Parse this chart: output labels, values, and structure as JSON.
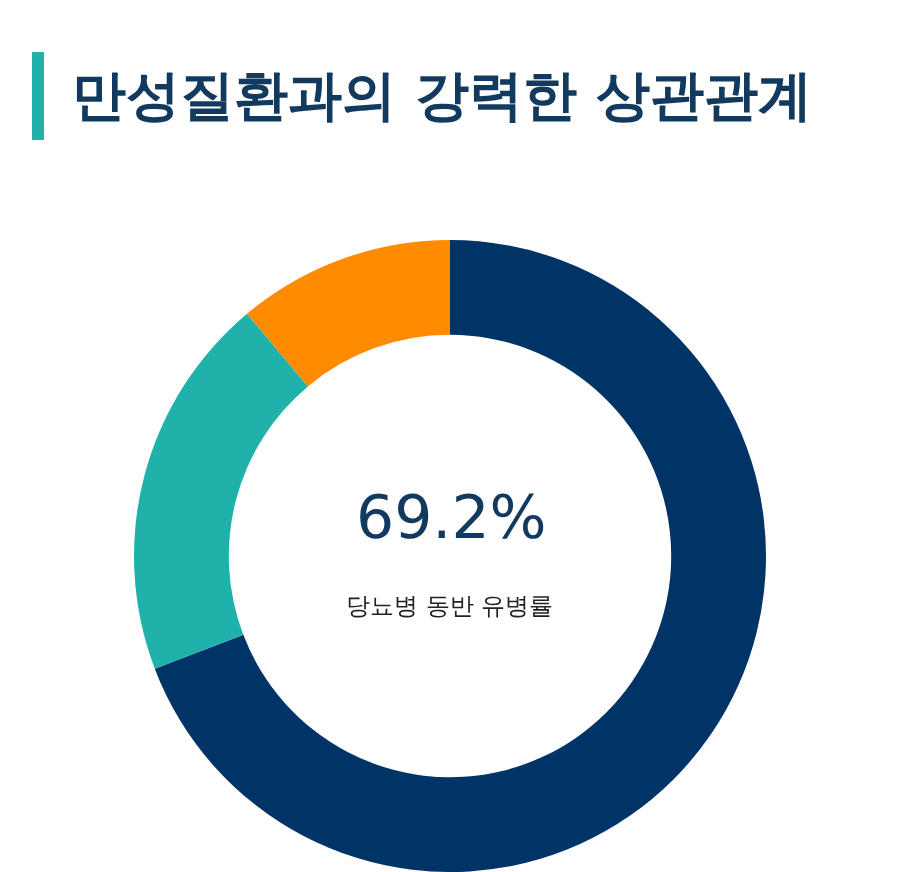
{
  "chart_data": {
    "type": "donut",
    "title": "만성질환과의 강력한 상관관계",
    "categories": [
      null,
      null,
      null
    ],
    "values": [
      69.2,
      19.7,
      11.1
    ],
    "colors": [
      "#003366",
      "#20b2aa",
      "#ff8c00"
    ],
    "annotations": [
      "69.2%",
      "당뇨병 동반 유병률"
    ],
    "legend": false
  }
}
